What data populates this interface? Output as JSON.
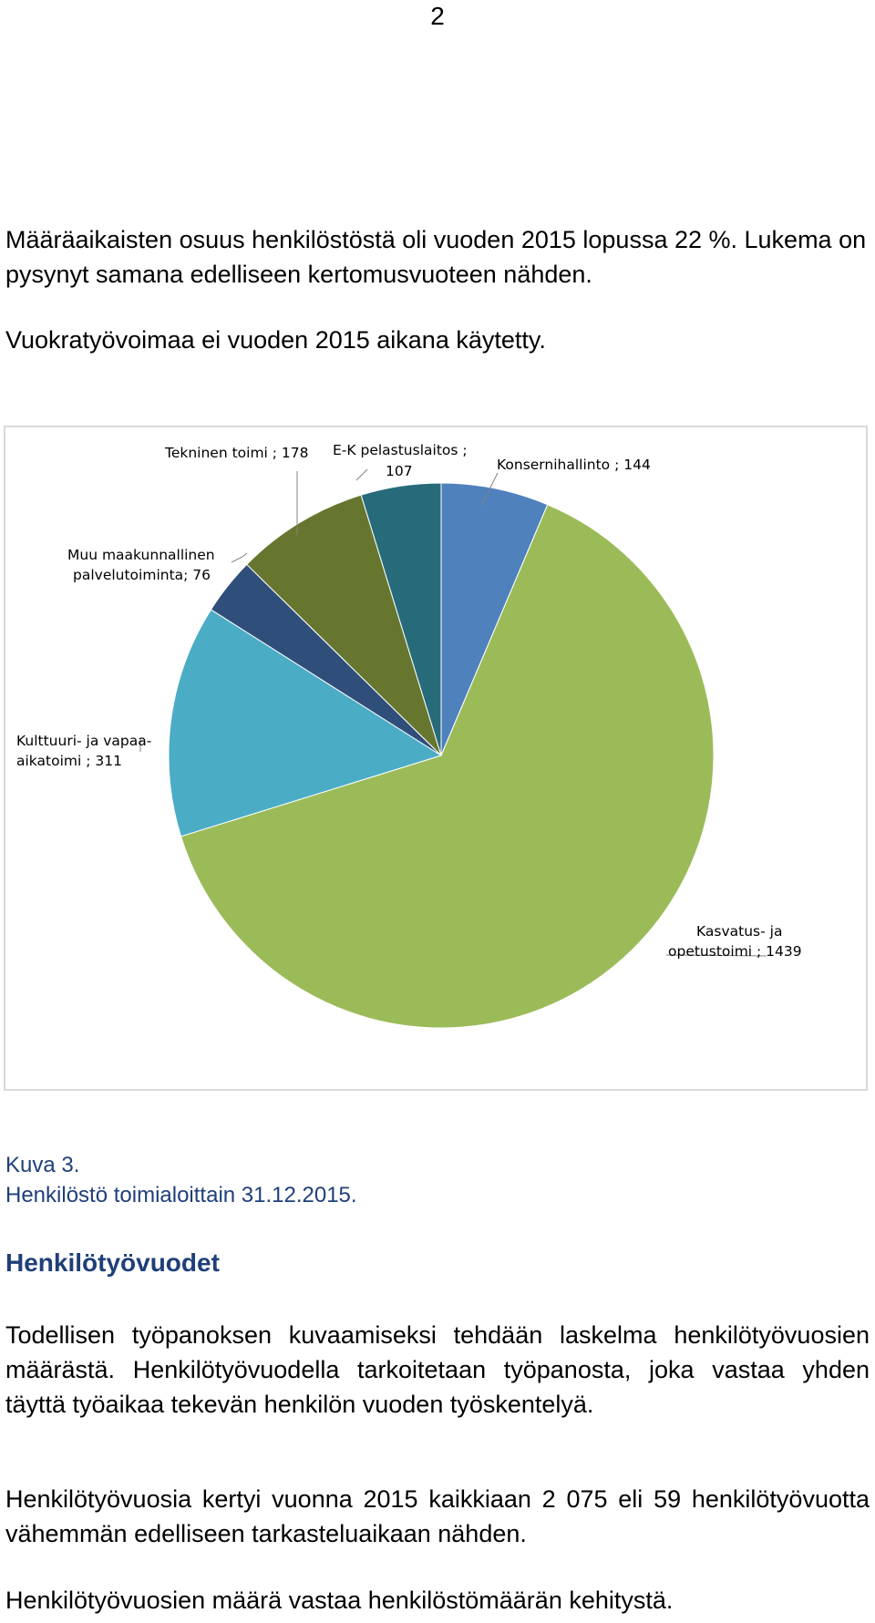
{
  "page_number": "2",
  "intro": {
    "p1": "Määräaikaisten osuus henkilöstöstä oli vuoden 2015 lopussa 22 %. Lukema on pysynyt samana edelliseen kertomusvuoteen nähden.",
    "p2": "Vuokratyövoimaa ei vuoden 2015 aikana käytetty."
  },
  "chart_data": {
    "type": "pie",
    "categories": [
      "Konsernihallinto",
      "Kasvatus- ja opetustoimi",
      "Kulttuuri- ja vapaa-aikatoimi",
      "Muu maakunnallinen palvelutoiminta",
      "Tekninen toimi",
      "E-K pelastuslaitos"
    ],
    "values": [
      144,
      1439,
      311,
      76,
      178,
      107
    ],
    "colors": [
      "#4f81bd",
      "#9bbb59",
      "#4bacc6",
      "#2f4f7a",
      "#66762f",
      "#276b7a"
    ],
    "labels": {
      "konserni": "Konsernihallinto ; 144",
      "kasvatus_1": "Kasvatus- ja",
      "kasvatus_2": "opetustoimi ; 1439",
      "kulttuuri_1": "Kulttuuri- ja vapaa-",
      "kulttuuri_2": "aikatoimi ; 311",
      "muu_1": "Muu maakunnallinen",
      "muu_2": "palvelutoiminta; 76",
      "tekninen": "Tekninen toimi ; 178",
      "ek_1": "E-K pelastuslaitos ;",
      "ek_2": "107"
    }
  },
  "caption": {
    "line1": "Kuva 3.",
    "line2": "Henkilöstö toimialoittain 31.12.2015."
  },
  "section": {
    "heading": "Henkilötyövuodet",
    "p1": "Todellisen työpanoksen kuvaamiseksi tehdään laskelma henkilötyövuosien määrästä. Henkilötyövuodella tarkoitetaan työpanosta, joka vastaa yhden täyttä työaikaa tekevän henkilön vuoden työskentelyä.",
    "p2": "Henkilötyövuosia kertyi vuonna 2015 kaikkiaan 2 075 eli 59 henkilötyövuotta vähemmän edelliseen tarkasteluaikaan nähden.",
    "p3": "Henkilötyövuosien määrä vastaa henkilöstömäärän kehitystä."
  }
}
